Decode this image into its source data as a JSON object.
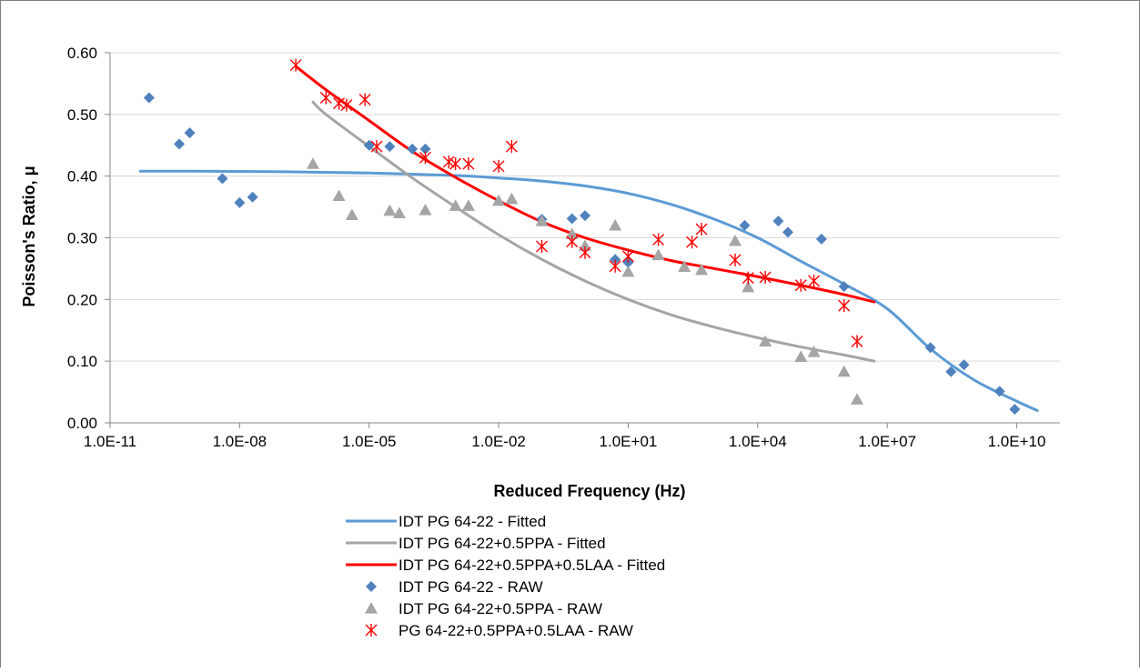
{
  "chart_data": {
    "type": "scatter",
    "xlabel": "Reduced Frequency (Hz)",
    "ylabel": "Poisson's Ratio, μ",
    "x_scale": "log",
    "xlim": [
      1e-11,
      100000000000.0
    ],
    "ylim": [
      0,
      0.6
    ],
    "x_ticks": [
      1e-11,
      1e-08,
      1e-05,
      0.01,
      10.0,
      10000.0,
      10000000.0,
      10000000000.0
    ],
    "x_tick_labels": [
      "1.0E-11",
      "1.0E-08",
      "1.0E-05",
      "1.0E-02",
      "1.0E+01",
      "1.0E+04",
      "1.0E+07",
      "1.0E+10"
    ],
    "y_ticks": [
      0,
      0.1,
      0.2,
      0.3,
      0.4,
      0.5,
      0.6
    ],
    "y_tick_labels": [
      "0.00",
      "0.10",
      "0.20",
      "0.30",
      "0.40",
      "0.50",
      "0.60"
    ],
    "grid": "horizontal",
    "legend_position": "bottom",
    "series": [
      {
        "name": "IDT PG 64-22 - Fitted",
        "kind": "line",
        "color": "#5b9bd5",
        "points": [
          [
            5e-11,
            0.408
          ],
          [
            1e-09,
            0.408
          ],
          [
            1e-07,
            0.407
          ],
          [
            1e-05,
            0.405
          ],
          [
            0.001,
            0.401
          ],
          [
            0.01,
            0.397
          ],
          [
            0.1,
            0.392
          ],
          [
            1,
            0.384
          ],
          [
            10,
            0.372
          ],
          [
            100,
            0.354
          ],
          [
            1000,
            0.33
          ],
          [
            10000,
            0.3
          ],
          [
            100000,
            0.262
          ],
          [
            1000000,
            0.225
          ],
          [
            10000000,
            0.185
          ],
          [
            100000000,
            0.12
          ],
          [
            1000000000,
            0.07
          ],
          [
            10000000000,
            0.035
          ],
          [
            30000000000,
            0.02
          ]
        ]
      },
      {
        "name": "IDT PG 64-22+0.5PPA - Fitted",
        "kind": "line",
        "color": "#a5a5a5",
        "points": [
          [
            5e-07,
            0.52
          ],
          [
            1e-06,
            0.5
          ],
          [
            1e-05,
            0.448
          ],
          [
            0.0001,
            0.397
          ],
          [
            0.001,
            0.35
          ],
          [
            0.01,
            0.305
          ],
          [
            0.1,
            0.265
          ],
          [
            1,
            0.23
          ],
          [
            10,
            0.2
          ],
          [
            100,
            0.175
          ],
          [
            1000,
            0.155
          ],
          [
            10000,
            0.138
          ],
          [
            100000,
            0.123
          ],
          [
            1000000,
            0.11
          ],
          [
            5000000,
            0.1
          ]
        ]
      },
      {
        "name": "IDT PG 64-22+0.5PPA+0.5LAA - Fitted",
        "kind": "line",
        "color": "#ff0000",
        "points": [
          [
            2e-07,
            0.578
          ],
          [
            1e-06,
            0.54
          ],
          [
            1e-05,
            0.49
          ],
          [
            0.0001,
            0.44
          ],
          [
            0.001,
            0.398
          ],
          [
            0.01,
            0.36
          ],
          [
            0.1,
            0.326
          ],
          [
            1,
            0.3
          ],
          [
            10,
            0.28
          ],
          [
            100,
            0.263
          ],
          [
            1000,
            0.25
          ],
          [
            10000,
            0.237
          ],
          [
            100000,
            0.223
          ],
          [
            1000000,
            0.208
          ],
          [
            5000000,
            0.196
          ]
        ]
      },
      {
        "name": "IDT PG 64-22 - RAW",
        "kind": "diamond",
        "color": "#4f81bd",
        "points": [
          [
            8e-11,
            0.527
          ],
          [
            4e-10,
            0.452
          ],
          [
            7e-10,
            0.47
          ],
          [
            4e-09,
            0.396
          ],
          [
            1e-08,
            0.357
          ],
          [
            2e-08,
            0.366
          ],
          [
            1e-05,
            0.45
          ],
          [
            3e-05,
            0.448
          ],
          [
            0.0001,
            0.444
          ],
          [
            0.0002,
            0.444
          ],
          [
            0.1,
            0.33
          ],
          [
            0.5,
            0.331
          ],
          [
            1,
            0.336
          ],
          [
            5,
            0.265
          ],
          [
            10,
            0.26
          ],
          [
            5000,
            0.32
          ],
          [
            30000,
            0.327
          ],
          [
            50000,
            0.309
          ],
          [
            300000,
            0.298
          ],
          [
            1000000,
            0.221
          ],
          [
            100000000,
            0.122
          ],
          [
            300000000,
            0.083
          ],
          [
            600000000,
            0.094
          ],
          [
            4000000000,
            0.051
          ],
          [
            9000000000,
            0.022
          ]
        ]
      },
      {
        "name": "IDT PG 64-22+0.5PPA - RAW",
        "kind": "triangle",
        "color": "#a5a5a5",
        "points": [
          [
            5e-07,
            0.42
          ],
          [
            2e-06,
            0.368
          ],
          [
            4e-06,
            0.337
          ],
          [
            3e-05,
            0.344
          ],
          [
            5e-05,
            0.34
          ],
          [
            0.0002,
            0.345
          ],
          [
            0.001,
            0.352
          ],
          [
            0.002,
            0.352
          ],
          [
            0.01,
            0.36
          ],
          [
            0.02,
            0.363
          ],
          [
            0.1,
            0.327
          ],
          [
            0.5,
            0.306
          ],
          [
            1,
            0.287
          ],
          [
            5,
            0.32
          ],
          [
            10,
            0.245
          ],
          [
            50,
            0.272
          ],
          [
            200,
            0.253
          ],
          [
            500,
            0.248
          ],
          [
            3000,
            0.295
          ],
          [
            6000,
            0.22
          ],
          [
            15000,
            0.132
          ],
          [
            100000,
            0.107
          ],
          [
            200000,
            0.115
          ],
          [
            1000000,
            0.083
          ],
          [
            2000000,
            0.038
          ]
        ]
      },
      {
        "name": "PG 64-22+0.5PPA+0.5LAA - RAW",
        "kind": "asterisk",
        "color": "#ff0000",
        "points": [
          [
            2e-07,
            0.58
          ],
          [
            1e-06,
            0.527
          ],
          [
            2e-06,
            0.518
          ],
          [
            3e-06,
            0.515
          ],
          [
            8e-06,
            0.524
          ],
          [
            1.5e-05,
            0.448
          ],
          [
            0.0002,
            0.43
          ],
          [
            0.0007,
            0.423
          ],
          [
            0.001,
            0.42
          ],
          [
            0.002,
            0.42
          ],
          [
            0.01,
            0.416
          ],
          [
            0.02,
            0.448
          ],
          [
            0.1,
            0.286
          ],
          [
            0.5,
            0.294
          ],
          [
            1,
            0.276
          ],
          [
            5,
            0.254
          ],
          [
            10,
            0.27
          ],
          [
            50,
            0.297
          ],
          [
            300,
            0.293
          ],
          [
            500,
            0.314
          ],
          [
            3000,
            0.264
          ],
          [
            6000,
            0.235
          ],
          [
            15000,
            0.236
          ],
          [
            100000,
            0.223
          ],
          [
            200000,
            0.23
          ],
          [
            1000000,
            0.19
          ],
          [
            2000000,
            0.132
          ]
        ]
      }
    ]
  }
}
